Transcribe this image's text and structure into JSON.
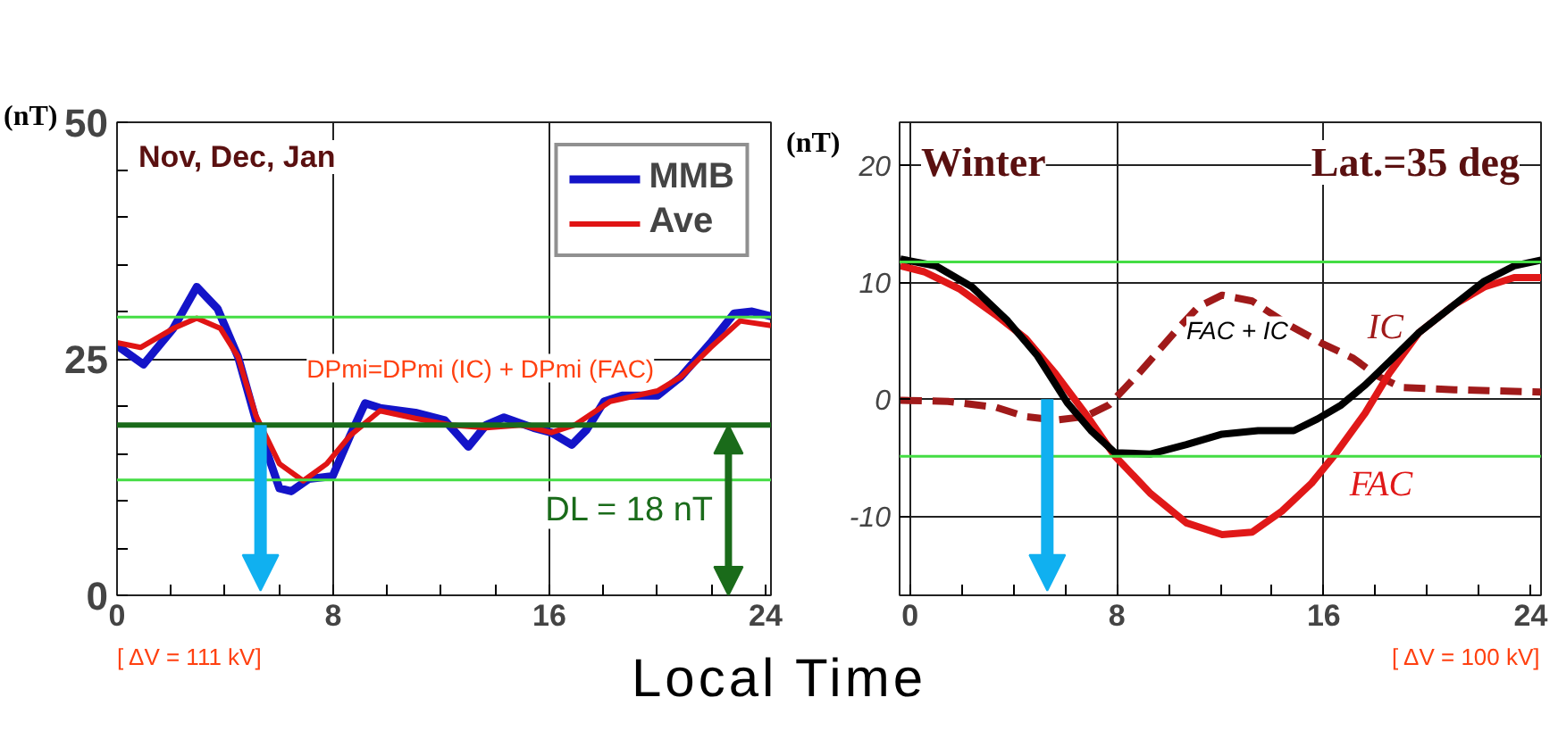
{
  "chart_data": [
    {
      "type": "line",
      "title": "Nov, Dec, Jan",
      "ylabel": "(nT)",
      "xlabel": "Local Time",
      "xlim": [
        0,
        24.2
      ],
      "ylim": [
        0,
        50
      ],
      "xticks": [
        0,
        {
          "value": 2,
          "label": null
        },
        {
          "value": 4,
          "label": null
        },
        {
          "value": 6,
          "label": null
        },
        8,
        {
          "value": 10,
          "label": null
        },
        {
          "value": 12,
          "label": null
        },
        {
          "value": 14,
          "label": null
        },
        16,
        {
          "value": 18,
          "label": null
        },
        {
          "value": 20,
          "label": null
        },
        {
          "value": 22,
          "label": null
        },
        24
      ],
      "yticks": [
        0,
        {
          "value": 5,
          "label": null
        },
        {
          "value": 10,
          "label": null
        },
        {
          "value": 15,
          "label": null
        },
        {
          "value": 20,
          "label": null
        },
        25,
        {
          "value": 30,
          "label": null
        },
        {
          "value": 35,
          "label": null
        },
        {
          "value": 40,
          "label": null
        },
        {
          "value": 45,
          "label": null
        },
        50
      ],
      "grid": true,
      "legend": "top right",
      "line_style": "solid",
      "series": [
        {
          "name": "MMB",
          "color": "#1414c8",
          "x": [
            0,
            0.98,
            2.08,
            2.95,
            3.72,
            4.48,
            5.14,
            6.01,
            6.45,
            7.1,
            7.98,
            8.63,
            9.18,
            9.73,
            11.04,
            12.13,
            13.0,
            13.66,
            14.32,
            15.41,
            16.07,
            16.83,
            17.38,
            18.03,
            18.69,
            20.0,
            20.87,
            21.97,
            22.84,
            23.5,
            24.2
          ],
          "values": [
            26.4,
            24.4,
            28.2,
            32.6,
            30.3,
            25.2,
            18.5,
            11.3,
            11.0,
            12.3,
            12.6,
            16.9,
            20.3,
            19.8,
            19.3,
            18.5,
            15.7,
            18.0,
            18.8,
            17.7,
            17.2,
            15.9,
            17.5,
            20.5,
            21.1,
            21.1,
            23.1,
            26.7,
            29.8,
            30.0,
            29.5
          ]
        },
        {
          "name": "Ave",
          "color": "#e01414",
          "x": [
            0,
            0.87,
            2.08,
            2.95,
            3.83,
            4.48,
            5.14,
            6.01,
            6.89,
            7.76,
            8.63,
            9.73,
            11.04,
            12.35,
            13.66,
            14.97,
            16.07,
            16.94,
            18.25,
            20.0,
            20.87,
            21.97,
            23.06,
            24.2
          ],
          "values": [
            26.7,
            26.2,
            28.2,
            29.3,
            28.2,
            25.2,
            19.0,
            13.9,
            12.1,
            13.9,
            16.9,
            19.5,
            18.7,
            18.0,
            17.7,
            18.0,
            17.2,
            18.0,
            20.5,
            21.6,
            23.1,
            26.2,
            29.0,
            28.5
          ]
        }
      ],
      "ref_lines": [
        {
          "axis": "y",
          "value": 29.4,
          "color": "#44dd44"
        },
        {
          "axis": "y",
          "value": 18,
          "color": "#1a6b1a",
          "label": "DL = 18 nT"
        },
        {
          "axis": "y",
          "value": 12.2,
          "color": "#44dd44"
        }
      ],
      "annotations": [
        "DPmi=DPmi (IC) + DPmi (FAC)",
        "[ ΔV = 111 kV]"
      ]
    },
    {
      "type": "line",
      "title": "Winter",
      "subtitle": "Lat.=35 deg",
      "ylabel": "(nT)",
      "xlim": [
        -0.4,
        24.4
      ],
      "ylim": [
        -16.8,
        23.7
      ],
      "xticks": [
        0,
        {
          "value": 2,
          "label": null
        },
        {
          "value": 4,
          "label": null
        },
        {
          "value": 6,
          "label": null
        },
        8,
        {
          "value": 10,
          "label": null
        },
        {
          "value": 12,
          "label": null
        },
        {
          "value": 14,
          "label": null
        },
        16,
        {
          "value": 18,
          "label": null
        },
        {
          "value": 20,
          "label": null
        },
        {
          "value": 22,
          "label": null
        },
        24
      ],
      "yticks": [
        -10,
        0,
        10,
        20
      ],
      "grid": true,
      "series": [
        {
          "name": "IC",
          "color": "#a01a1a",
          "line_style": "dashed",
          "x": [
            -0.37,
            1.47,
            3.32,
            4.47,
            5.62,
            6.77,
            7.7,
            8.85,
            10.23,
            11.15,
            12.07,
            13.23,
            14.61,
            15.99,
            17.14,
            18.06,
            18.99,
            21.06,
            24.4
          ],
          "values": [
            -0.1,
            -0.2,
            -0.7,
            -1.5,
            -1.8,
            -1.5,
            -0.5,
            2.2,
            5.7,
            7.9,
            8.9,
            8.4,
            6.4,
            4.7,
            3.5,
            2.0,
            1.0,
            0.8,
            0.6
          ]
        },
        {
          "name": "FAC",
          "color": "#e01818",
          "line_style": "solid",
          "x": [
            -0.37,
            0.55,
            1.94,
            3.32,
            4.47,
            5.62,
            6.77,
            7.93,
            9.31,
            10.69,
            12.07,
            13.23,
            14.38,
            15.53,
            16.45,
            17.6,
            18.53,
            19.68,
            21.06,
            22.21,
            23.36,
            24.4
          ],
          "values": [
            11.4,
            10.9,
            9.4,
            7.2,
            5.2,
            2.2,
            -1.2,
            -4.9,
            -8.1,
            -10.6,
            -11.6,
            -11.4,
            -9.6,
            -7.2,
            -4.7,
            -1.2,
            2.2,
            5.7,
            8.1,
            9.6,
            10.4,
            10.4
          ]
        },
        {
          "name": "FAC + IC",
          "color": "#000000",
          "line_style": "solid",
          "x": [
            -0.37,
            1.01,
            2.4,
            3.78,
            4.93,
            6.08,
            7.0,
            7.93,
            9.31,
            10.69,
            12.07,
            13.46,
            14.84,
            15.76,
            16.68,
            17.6,
            18.53,
            19.68,
            21.06,
            22.21,
            23.36,
            24.4
          ],
          "values": [
            12.0,
            11.4,
            9.6,
            6.7,
            3.7,
            -0.3,
            -2.7,
            -4.6,
            -4.7,
            -3.9,
            -3.0,
            -2.7,
            -2.7,
            -1.7,
            -0.5,
            1.2,
            3.2,
            5.7,
            8.1,
            10.1,
            11.4,
            11.9
          ]
        }
      ],
      "ref_lines": [
        {
          "axis": "y",
          "value": 11.75,
          "color": "#44dd44"
        },
        {
          "axis": "y",
          "value": -4.9,
          "color": "#44dd44"
        }
      ],
      "annotations": [
        "[ ΔV = 100 kV]"
      ]
    }
  ]
}
